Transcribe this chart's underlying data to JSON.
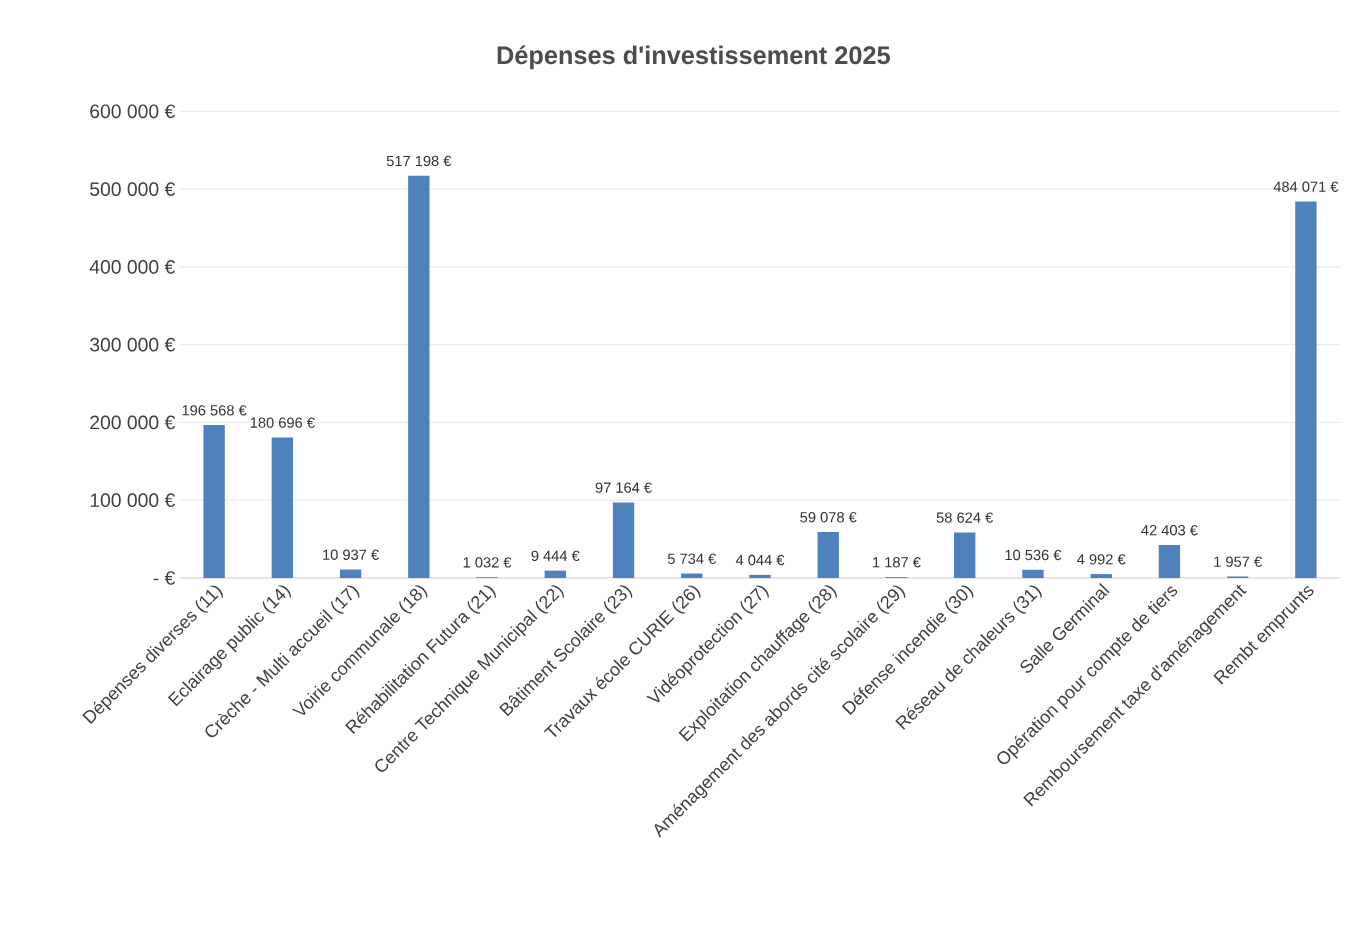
{
  "chart_data": {
    "type": "bar",
    "title": "Dépenses d'investissement 2025",
    "categories": [
      "Dépenses diverses (11)",
      "Eclairage public (14)",
      "Crèche - Multi accueil (17)",
      "Voirie communale (18)",
      "Réhabilitation Futura (21)",
      "Centre Technique Municipal (22)",
      "Bâtiment Scolaire (23)",
      "Travaux école CURIE (26)",
      "Vidéoprotection (27)",
      "Exploitation chauffage (28)",
      "Aménagement des abords cité scolaire (29)",
      "Défense incendie (30)",
      "Réseau de chaleurs (31)",
      "Salle Germinal",
      "Opération pour compte de tiers",
      "Remboursement taxe d'aménagement",
      "Rembt emprunts"
    ],
    "values": [
      196568,
      180696,
      10937,
      517198,
      1032,
      9444,
      97164,
      5734,
      4044,
      59078,
      1187,
      58624,
      10536,
      4992,
      42403,
      1957,
      484071
    ],
    "value_labels": [
      "196 568 €",
      "180 696 €",
      "10 937 €",
      "517 198 €",
      "1 032 €",
      "9 444 €",
      "97 164 €",
      "5 734 €",
      "4 044 €",
      "59 078 €",
      "1 187 €",
      "58 624 €",
      "10 536 €",
      "4 992 €",
      "42 403 €",
      "1 957 €",
      "484 071 €"
    ],
    "color": "#4f81bd",
    "ylim": [
      0,
      600000
    ],
    "yticks": [
      {
        "value": 0,
        "label": "-  €"
      },
      {
        "value": 100000,
        "label": "100 000 €"
      },
      {
        "value": 200000,
        "label": "200 000 €"
      },
      {
        "value": 300000,
        "label": "300 000 €"
      },
      {
        "value": 400000,
        "label": "400 000 €"
      },
      {
        "value": 500000,
        "label": "500 000 €"
      },
      {
        "value": 600000,
        "label": "600 000 €"
      }
    ],
    "grid": "y"
  }
}
